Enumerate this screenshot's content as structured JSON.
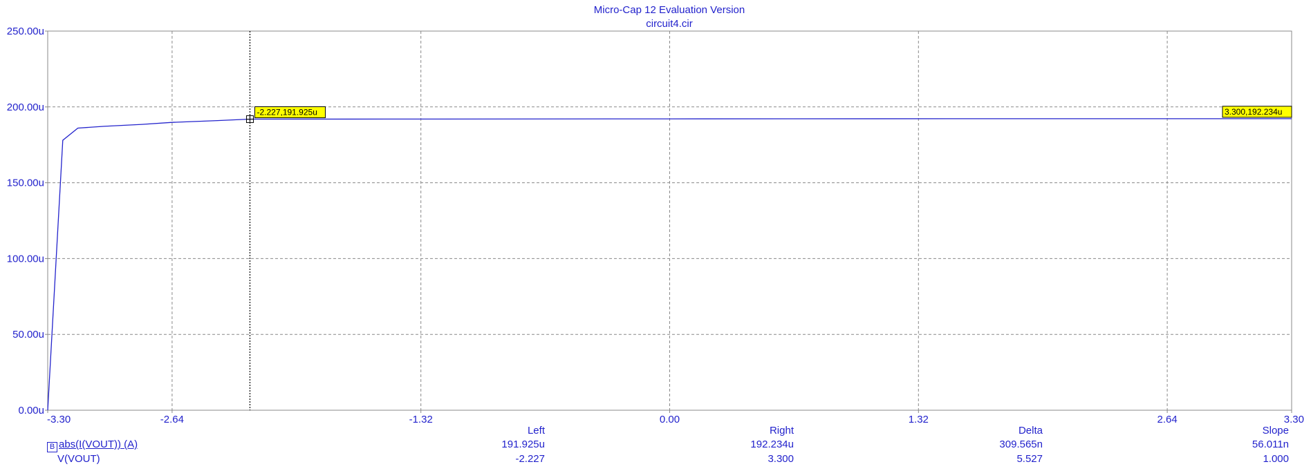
{
  "window": {
    "title": "Micro-Cap 12 Evaluation Version",
    "subtitle": "circuit4.cir"
  },
  "colors": {
    "trace": "#2222cc",
    "text": "#2222cc",
    "grid": "#888888",
    "cursor": "#000000",
    "label_bg": "#ffff00"
  },
  "chart_data": {
    "type": "line",
    "title": "Micro-Cap 12 Evaluation Version",
    "subtitle": "circuit4.cir",
    "xlim": [
      -3.3,
      3.3
    ],
    "ylim": [
      0,
      0.00025
    ],
    "x_ticks": [
      "-3.30",
      "-2.64",
      "-1.32",
      "0.00",
      "1.32",
      "2.64",
      "3.30"
    ],
    "x_tick_values": [
      -3.3,
      -2.64,
      -1.32,
      0.0,
      1.32,
      2.64,
      3.3
    ],
    "x_grid_values": [
      -2.64,
      -1.32,
      0.0,
      1.32,
      2.64
    ],
    "y_ticks": [
      "0.00u",
      "50.00u",
      "100.00u",
      "150.00u",
      "200.00u",
      "250.00u"
    ],
    "y_tick_values": [
      0,
      5e-05,
      0.0001,
      0.00015,
      0.0002,
      0.00025
    ],
    "grid": true,
    "series": [
      {
        "name": "abs(I(VOUT)) (A)",
        "x": [
          -3.3,
          -3.22,
          -3.14,
          -3.0,
          -2.8,
          -2.64,
          -2.4,
          -2.227,
          -1.5,
          0.0,
          1.5,
          3.3
        ],
        "y": [
          0,
          0.000178,
          0.000186,
          0.0001872,
          0.0001885,
          0.0001898,
          0.000191,
          0.000191925,
          0.000192,
          0.0001921,
          0.0001922,
          0.000192234
        ]
      }
    ],
    "cursors": [
      {
        "x": -2.227,
        "y": 0.000191925,
        "label": "-2.227,191.925u"
      },
      {
        "x": 3.3,
        "y": 0.000192234,
        "label": "3.300,192.234u"
      }
    ]
  },
  "table": {
    "headers": {
      "left": "Left",
      "right": "Right",
      "delta": "Delta",
      "slope": "Slope"
    },
    "rows": [
      {
        "box": "B",
        "name": "abs(I(VOUT)) (A)",
        "left": "191.925u",
        "right": "192.234u",
        "delta": "309.565n",
        "slope": "56.011n"
      },
      {
        "name": "V(VOUT)",
        "left": "-2.227",
        "right": "3.300",
        "delta": "5.527",
        "slope": "1.000"
      }
    ]
  }
}
